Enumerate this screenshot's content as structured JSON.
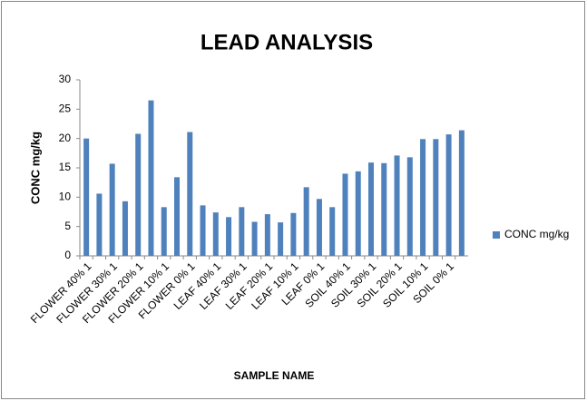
{
  "chart_data": {
    "type": "bar",
    "title": "LEAD ANALYSIS",
    "xlabel": "SAMPLE NAME",
    "ylabel": "CONC mg/kg",
    "categories": [
      "FLOWER 40% 1",
      null,
      "FLOWER 30% 1",
      null,
      "FLOWER 20% 1",
      null,
      "FLOWER 10% 1",
      null,
      "FLOWER 0% 1",
      null,
      "LEAF 40% 1",
      null,
      "LEAF 30% 1",
      null,
      "LEAF 20% 1",
      null,
      "LEAF 10% 1",
      null,
      "LEAF 0% 1",
      null,
      "SOIL 40% 1",
      null,
      "SOIL 30% 1",
      null,
      "SOIL 20% 1",
      null,
      "SOIL 10% 1",
      null,
      "SOIL 0% 1",
      null
    ],
    "series": [
      {
        "name": "CONC mg/kg",
        "color": "#4f81bd",
        "values": [
          20,
          10.6,
          15.7,
          9.3,
          20.8,
          26.5,
          8.3,
          13.4,
          21.1,
          8.6,
          7.4,
          6.6,
          8.3,
          5.8,
          7.1,
          5.7,
          7.3,
          11.7,
          9.7,
          8.3,
          14,
          14.4,
          15.9,
          15.8,
          17.1,
          16.8,
          19.9,
          19.9,
          20.7,
          21.4
        ]
      }
    ],
    "ylim": [
      0,
      30
    ],
    "yticks": [
      0,
      5,
      10,
      15,
      20,
      25,
      30
    ],
    "grid": false,
    "legend": "right"
  }
}
